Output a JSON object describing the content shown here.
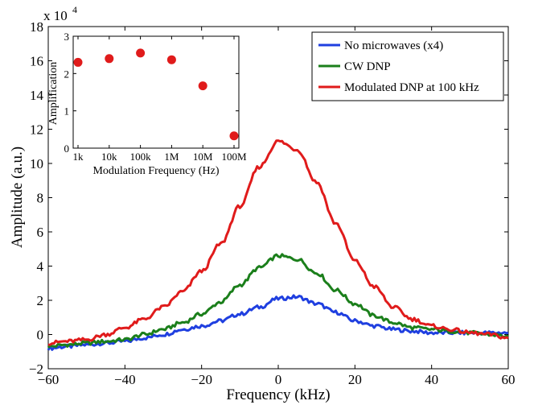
{
  "chart_data": [
    {
      "id": "main",
      "type": "line",
      "title": "",
      "xlabel": "Frequency (kHz)",
      "ylabel": "Amplitude (a.u.)",
      "xlim": [
        -60,
        60
      ],
      "ylim": [
        -2,
        18
      ],
      "y_scale_label": "x 10",
      "y_scale_exponent": "4",
      "xticks": [
        -60,
        -40,
        -20,
        0,
        20,
        40,
        60
      ],
      "yticks": [
        -2,
        0,
        2,
        4,
        6,
        8,
        10,
        12,
        14,
        16,
        18
      ],
      "xtick_labels": [
        "−60",
        "−40",
        "−20",
        "0",
        "20",
        "40",
        "60"
      ],
      "ytick_labels": [
        "−2",
        "0",
        "2",
        "4",
        "6",
        "8",
        "10",
        "12",
        "14",
        "16",
        "18"
      ],
      "grid": false,
      "legend_position": "top-right",
      "series": [
        {
          "name": "No microwaves (x4)",
          "color": "#1f3fe0",
          "x": [
            -60,
            -55,
            -50,
            -45,
            -40,
            -35,
            -30,
            -25,
            -20,
            -15,
            -10,
            -5,
            0,
            5,
            10,
            15,
            20,
            25,
            30,
            35,
            40,
            45,
            50,
            55,
            60
          ],
          "y": [
            -0.8,
            -0.7,
            -0.6,
            -0.5,
            -0.4,
            -0.2,
            0.0,
            0.3,
            0.5,
            0.8,
            1.2,
            1.6,
            2.1,
            2.2,
            1.8,
            1.3,
            0.8,
            0.5,
            0.3,
            0.2,
            0.1,
            0.1,
            0.1,
            0.1,
            0.1
          ]
        },
        {
          "name": "CW DNP",
          "color": "#1b7f1b",
          "x": [
            -60,
            -55,
            -50,
            -45,
            -40,
            -35,
            -30,
            -25,
            -20,
            -15,
            -10,
            -5,
            0,
            5,
            10,
            15,
            20,
            25,
            30,
            35,
            40,
            45,
            50,
            55,
            60
          ],
          "y": [
            -0.7,
            -0.6,
            -0.5,
            -0.4,
            -0.3,
            0.0,
            0.3,
            0.7,
            1.2,
            1.9,
            2.9,
            3.9,
            4.6,
            4.4,
            3.6,
            2.6,
            1.8,
            1.1,
            0.7,
            0.4,
            0.3,
            0.2,
            0.1,
            0.0,
            -0.1
          ]
        },
        {
          "name": "Modulated DNP at 100 kHz",
          "color": "#e01b1b",
          "x": [
            -60,
            -55,
            -50,
            -45,
            -40,
            -35,
            -30,
            -25,
            -20,
            -15,
            -10,
            -5,
            0,
            5,
            10,
            15,
            20,
            25,
            30,
            35,
            40,
            45,
            50,
            55,
            60
          ],
          "y": [
            -0.5,
            -0.4,
            -0.3,
            0.0,
            0.4,
            0.9,
            1.6,
            2.5,
            3.7,
            5.3,
            7.5,
            9.8,
            11.3,
            10.8,
            8.9,
            6.5,
            4.3,
            2.8,
            1.6,
            0.9,
            0.5,
            0.3,
            0.1,
            0.0,
            -0.2
          ]
        }
      ]
    },
    {
      "id": "inset",
      "type": "scatter",
      "title": "",
      "xlabel": "Modulation Frequency (Hz)",
      "ylabel": "Amplification",
      "x_scale": "log",
      "x_exponent_range": [
        3,
        8
      ],
      "ylim": [
        0,
        3
      ],
      "xtick_labels": [
        "1k",
        "10k",
        "100k",
        "1M",
        "10M",
        "100M"
      ],
      "yticks": [
        0,
        1,
        2,
        3
      ],
      "ytick_labels": [
        "0",
        "1",
        "2",
        "3"
      ],
      "grid": false,
      "color": "#e01b1b",
      "x_labels": [
        "1k",
        "10k",
        "100k",
        "1M",
        "10M",
        "100M"
      ],
      "values": [
        2.3,
        2.4,
        2.55,
        2.37,
        1.67,
        0.33
      ]
    }
  ]
}
